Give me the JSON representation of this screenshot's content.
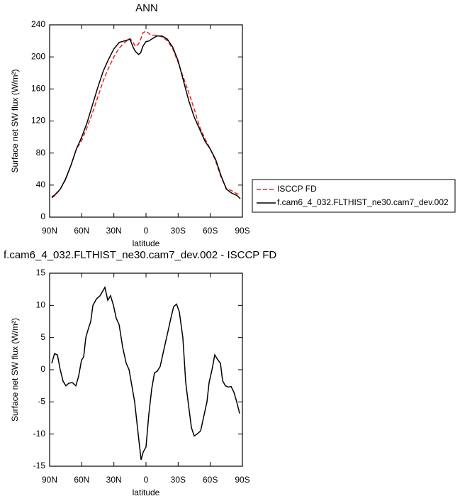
{
  "chart_data": [
    {
      "type": "line",
      "title": "ANN",
      "xlabel": "latitude",
      "ylabel": "Surface net SW flux (W/m²)",
      "x": [
        88,
        85,
        80,
        75,
        70,
        65,
        60,
        55,
        50,
        45,
        40,
        35,
        30,
        25,
        20,
        15,
        12,
        10,
        7,
        5,
        3,
        0,
        -3,
        -5,
        -10,
        -15,
        -20,
        -25,
        -30,
        -35,
        -40,
        -45,
        -50,
        -55,
        -60,
        -65,
        -70,
        -75,
        -80,
        -85,
        -88
      ],
      "series": [
        {
          "name": "ISCCP FD",
          "color": "#e8231f",
          "dash": true,
          "values": [
            24,
            27,
            35,
            47,
            65,
            85,
            96,
            112,
            130,
            150,
            170,
            186,
            200,
            211,
            218,
            223,
            218,
            213,
            216,
            222,
            230,
            232,
            229,
            227,
            227,
            225,
            220,
            210,
            193,
            174,
            155,
            135,
            113,
            98,
            85,
            70,
            50,
            36,
            33,
            29,
            29
          ]
        },
        {
          "name": "f.cam6_4_032.FLTHIST_ne30.cam7_dev.002",
          "color": "#000000",
          "dash": false,
          "values": [
            25,
            28,
            35,
            48,
            65,
            85,
            100,
            118,
            140,
            162,
            182,
            197,
            210,
            218,
            220,
            222,
            212,
            207,
            203,
            205,
            213,
            219,
            220,
            222,
            226,
            226,
            222,
            212,
            195,
            170,
            145,
            125,
            110,
            95,
            85,
            72,
            52,
            35,
            30,
            27,
            23
          ]
        }
      ],
      "xlim": [
        90,
        -90
      ],
      "xticks": [
        {
          "value": 90,
          "label": "90N"
        },
        {
          "value": 60,
          "label": "60N"
        },
        {
          "value": 30,
          "label": "30N"
        },
        0,
        {
          "value": -30,
          "label": "30S"
        },
        {
          "value": -60,
          "label": "60S"
        },
        {
          "value": -90,
          "label": "90S"
        }
      ],
      "ylim": [
        0,
        240
      ],
      "yticks": [
        0,
        40,
        80,
        120,
        160,
        200,
        240
      ],
      "legend": "right"
    },
    {
      "type": "line",
      "title": "f.cam6_4_032.FLTHIST_ne30.cam7_dev.002 - ISCCP FD",
      "xlabel": "latitude",
      "ylabel": "Surface net SW flux (W/m²)",
      "x": [
        88,
        85.4,
        82.7,
        80.1,
        77.4,
        74.8,
        72.1,
        68.8,
        65.5,
        62.9,
        60.2,
        58.2,
        56.2,
        53.6,
        51.6,
        49.6,
        46.3,
        42.9,
        38.4,
        35.7,
        33.1,
        30.4,
        27.8,
        25.1,
        21.8,
        18.5,
        15.8,
        13.2,
        10.6,
        7.3,
        4.6,
        2.6,
        0,
        -2.6,
        -5.3,
        -7.9,
        -10.6,
        -13.2,
        -16.5,
        -19.9,
        -23.2,
        -25.8,
        -28.5,
        -31.1,
        -34.4,
        -37.1,
        -39.7,
        -42.4,
        -45,
        -47.7,
        -51,
        -53.6,
        -56.9,
        -58.9,
        -61.6,
        -64.2,
        -66.8,
        -69.5,
        -71.5,
        -74.1,
        -76.8,
        -79.4,
        -82.1,
        -84.7,
        -87.4
      ],
      "series": [
        {
          "color": "#000000",
          "dash": false,
          "values": [
            1,
            2.5,
            2.3,
            0,
            -1.8,
            -2.5,
            -2.1,
            -2,
            -2.5,
            -1,
            1.5,
            2,
            5,
            6.5,
            7.5,
            10,
            11,
            11.5,
            12.8,
            10.8,
            11.5,
            10,
            8,
            7,
            3.5,
            1,
            0,
            -2.5,
            -5,
            -10,
            -14,
            -12.8,
            -12,
            -7,
            -3,
            -0.5,
            -0.2,
            0.5,
            3,
            5.5,
            8,
            9.8,
            10.2,
            9,
            5,
            -2,
            -5.5,
            -9,
            -10.3,
            -10,
            -9.5,
            -7.5,
            -5,
            -2,
            0,
            2.3,
            1.6,
            1,
            -1.7,
            -2.5,
            -2.7,
            -2.6,
            -3.5,
            -5,
            -6.8
          ]
        }
      ],
      "xlim": [
        90,
        -90
      ],
      "xticks": [
        {
          "value": 90,
          "label": "90N"
        },
        {
          "value": 60,
          "label": "60N"
        },
        {
          "value": 30,
          "label": "30N"
        },
        0,
        {
          "value": -30,
          "label": "30S"
        },
        {
          "value": -60,
          "label": "60S"
        },
        {
          "value": -90,
          "label": "90S"
        }
      ],
      "ylim": [
        -15,
        15
      ],
      "yticks": [
        -15,
        -10,
        -5,
        0,
        5,
        10,
        15
      ]
    }
  ]
}
